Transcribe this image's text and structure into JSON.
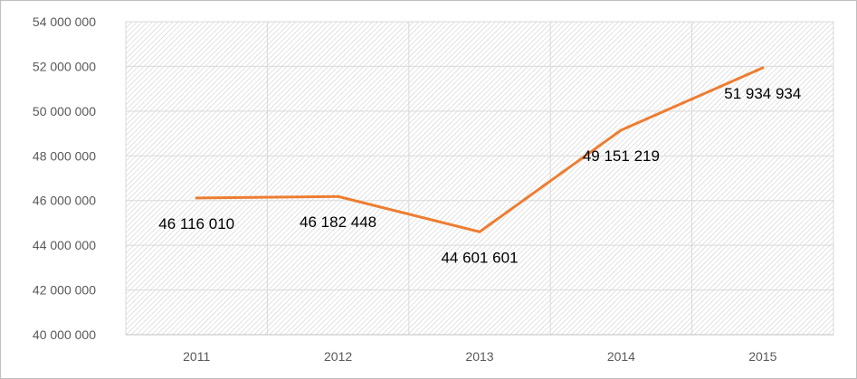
{
  "chart_data": {
    "type": "line",
    "title": "",
    "xlabel": "",
    "ylabel": "",
    "categories": [
      "2011",
      "2012",
      "2013",
      "2014",
      "2015"
    ],
    "series": [
      {
        "values": [
          46116010,
          46182448,
          44601601,
          49151219,
          51934934
        ],
        "labels": [
          "46 116 010",
          "46 182 448",
          "44 601 601",
          "49 151 219",
          "51 934 934"
        ],
        "color": "#ed7d31"
      }
    ],
    "ylim": [
      40000000,
      54000000
    ],
    "ytick_values": [
      40000000,
      42000000,
      44000000,
      46000000,
      48000000,
      50000000,
      52000000,
      54000000
    ],
    "ytick_labels": [
      "40 000 000",
      "42 000 000",
      "44 000 000",
      "46 000 000",
      "48 000 000",
      "50 000 000",
      "52 000 000",
      "54 000 000"
    ],
    "grid": true,
    "plot_background": "hatched",
    "legend": "none",
    "colors": {
      "gridline": "#d9d9d9",
      "hatch": "#c8c8c8",
      "axis": "#bfbfbf",
      "tick_text": "#595959"
    }
  }
}
